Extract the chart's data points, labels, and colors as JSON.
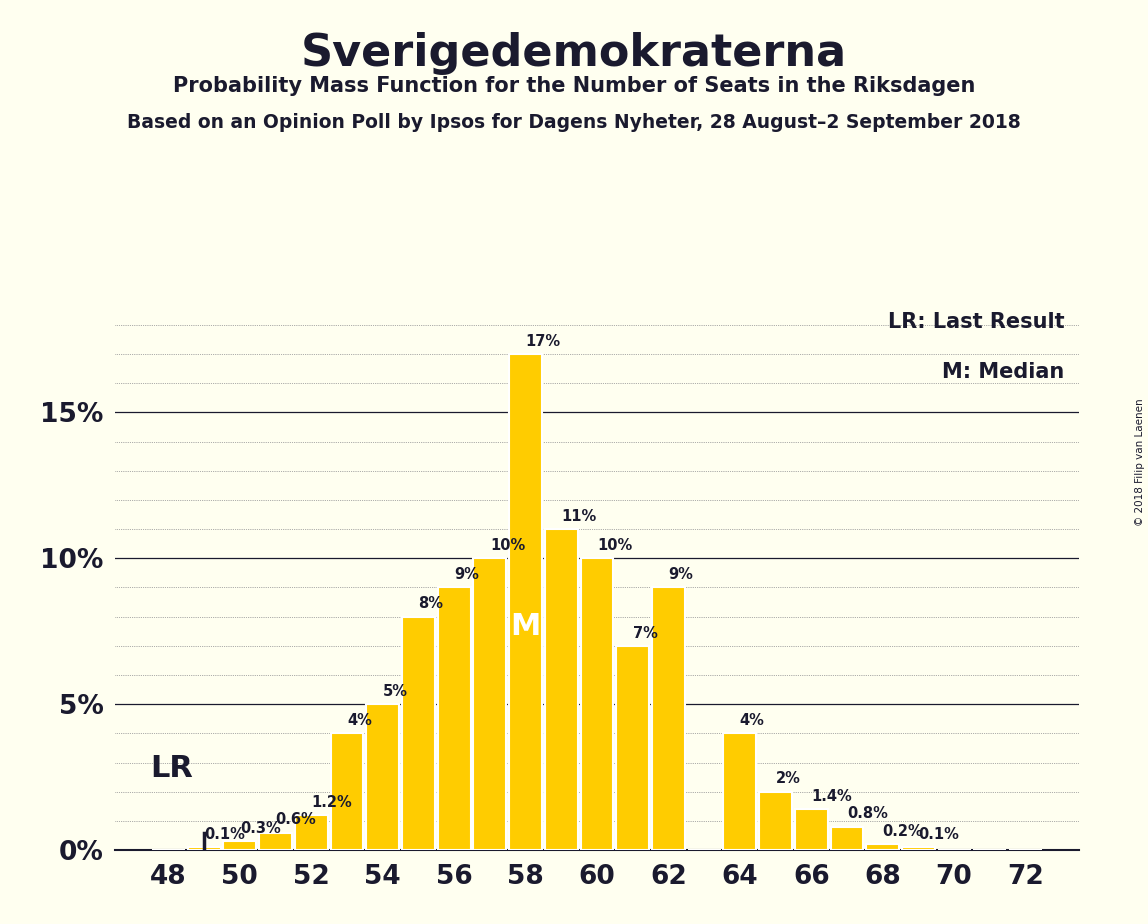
{
  "title": "Sverigedemokraterna",
  "subtitle1": "Probability Mass Function for the Number of Seats in the Riksdagen",
  "subtitle2": "Based on an Opinion Poll by Ipsos for Dagens Nyheter, 28 August–2 September 2018",
  "copyright": "© 2018 Filip van Laenen",
  "seats": [
    48,
    49,
    50,
    51,
    52,
    53,
    54,
    55,
    56,
    57,
    58,
    59,
    60,
    61,
    62,
    63,
    64,
    65,
    66,
    67,
    68,
    69,
    70,
    71,
    72
  ],
  "probabilities": [
    0.0,
    0.1,
    0.3,
    0.6,
    1.2,
    4.0,
    5.0,
    8.0,
    9.0,
    10.0,
    17.0,
    11.0,
    10.0,
    7.0,
    9.0,
    0.0,
    4.0,
    2.0,
    1.4,
    0.8,
    0.2,
    0.1,
    0.0,
    0.0,
    0.0
  ],
  "bar_color": "#FFCC00",
  "bar_edge_color": "#FFFFFF",
  "background_color": "#FFFFF0",
  "text_color": "#1a1a2e",
  "median_seat": 58,
  "last_result_seat": 49,
  "legend_lr": "LR: Last Result",
  "legend_m": "M: Median",
  "ytick_values": [
    0,
    5,
    10,
    15
  ],
  "ylim": [
    0,
    19
  ],
  "xlim_min": 46.5,
  "xlim_max": 73.5
}
